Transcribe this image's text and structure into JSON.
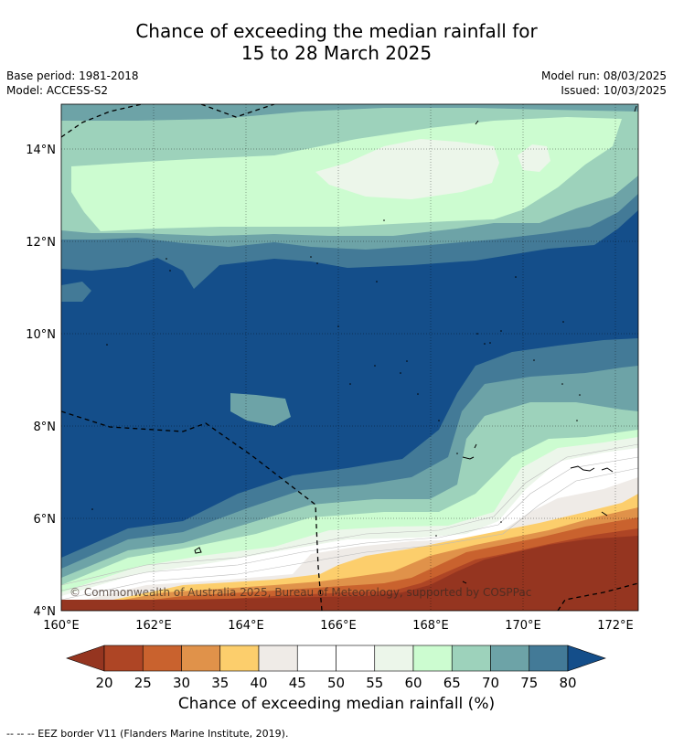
{
  "title": {
    "line1": "Chance of exceeding the median rainfall for",
    "line2": "15 to 28 March 2025"
  },
  "meta": {
    "base_period": "Base period: 1981-2018",
    "model": "Model: ACCESS-S2",
    "model_run": "Model run: 08/03/2025",
    "issued": "Issued: 10/03/2025"
  },
  "map": {
    "copyright": "© Commonwealth of Australia 2025, Bureau of Meteorology, supported by COSPPac",
    "lon_ticks": [
      "160°E",
      "162°E",
      "164°E",
      "166°E",
      "168°E",
      "170°E",
      "172°E"
    ],
    "lat_ticks": [
      "4°N",
      "6°N",
      "8°N",
      "10°N",
      "12°N",
      "14°N"
    ],
    "lon_range": [
      160,
      172.5
    ],
    "lat_range": [
      4,
      14.9
    ]
  },
  "colorbar": {
    "title": "Chance of exceeding median rainfall (%)",
    "labels": [
      "20",
      "25",
      "30",
      "35",
      "40",
      "45",
      "50",
      "55",
      "60",
      "65",
      "70",
      "75",
      "80"
    ],
    "colors": {
      "below_20": "#953520",
      "20_25": "#ae4525",
      "25_30": "#c9622e",
      "30_35": "#e0924a",
      "35_40": "#fcce6c",
      "40_45": "#efebe7",
      "45_50": "#ffffff",
      "50_55": "#ffffff",
      "55_60": "#ecf6ea",
      "60_65": "#ccfcd0",
      "65_70": "#9dd2bb",
      "70_75": "#6da3a7",
      "75_80": "#437a97",
      "above_80": "#144e8a"
    }
  },
  "footnote": "--  --  -- EEZ border V11 (Flanders Marine Institute, 2019)."
}
